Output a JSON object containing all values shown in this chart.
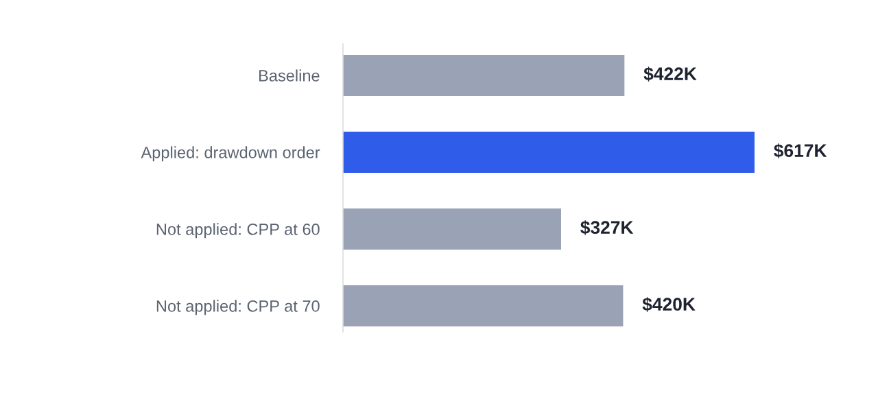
{
  "chart_data": {
    "type": "bar",
    "orientation": "horizontal",
    "categories": [
      "Baseline",
      "Applied: drawdown order",
      "Not applied: CPP at 60",
      "Not applied: CPP at 70"
    ],
    "values": [
      422,
      617,
      327,
      420
    ],
    "colors": [
      "#9aa3b5",
      "#2f5ce9",
      "#9aa3b5",
      "#9aa3b5"
    ],
    "value_labels": [
      "$422K",
      "$617K",
      "$327K",
      "$420K"
    ],
    "grid": false,
    "legend": false
  }
}
